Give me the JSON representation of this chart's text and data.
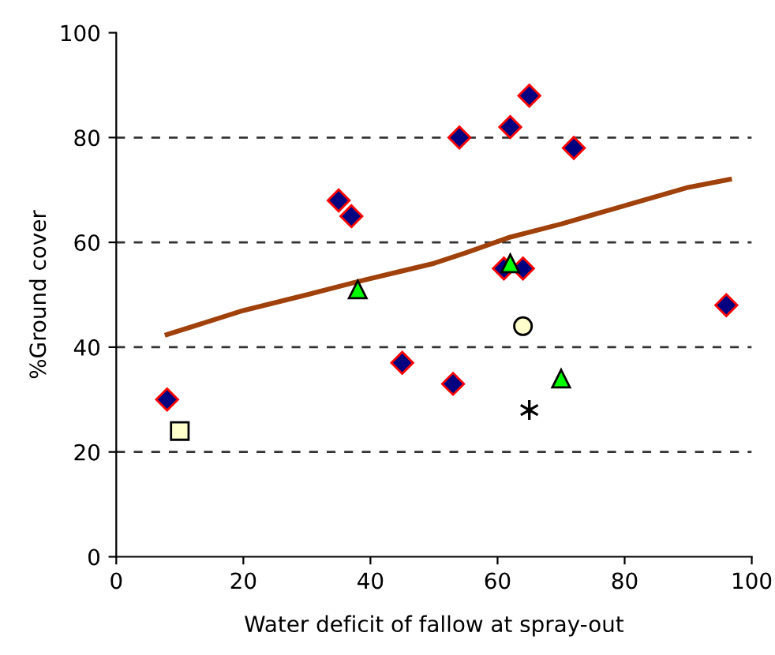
{
  "chart_data": {
    "type": "scatter",
    "xlabel": "Water deficit of fallow at spray-out",
    "ylabel": "%Ground cover",
    "xlim": [
      0,
      100
    ],
    "ylim": [
      0,
      100
    ],
    "xticks": [
      0,
      20,
      40,
      60,
      80,
      100
    ],
    "yticks": [
      0,
      20,
      40,
      60,
      80,
      100
    ],
    "grid": "y",
    "series": [
      {
        "marker": "diamond",
        "color": "#000080",
        "x": [
          8,
          35,
          37,
          45,
          53,
          54,
          61,
          62,
          64,
          65,
          72,
          96
        ],
        "values": [
          30,
          68,
          65,
          37,
          33,
          80,
          55,
          82,
          55,
          88,
          78,
          48
        ]
      },
      {
        "marker": "triangle",
        "color": "#00ff00",
        "x": [
          38,
          62,
          70
        ],
        "values": [
          51,
          56,
          34
        ]
      },
      {
        "marker": "square",
        "color": "#ffffcc",
        "x": [
          10
        ],
        "values": [
          24
        ]
      },
      {
        "marker": "circle",
        "color": "#ffffcc",
        "x": [
          64
        ],
        "values": [
          44
        ]
      },
      {
        "marker": "cross",
        "color": "#000000",
        "x": [
          65
        ],
        "values": [
          28
        ]
      },
      {
        "type": "line",
        "marker": "none",
        "line_style": "solid",
        "color": "#a0400a",
        "x": [
          8,
          20,
          30,
          38,
          50,
          55,
          62,
          70,
          80,
          90,
          96.5
        ],
        "values": [
          42.4,
          47,
          50,
          52.5,
          56,
          58,
          61,
          63.5,
          67,
          70.5,
          72
        ]
      }
    ]
  }
}
